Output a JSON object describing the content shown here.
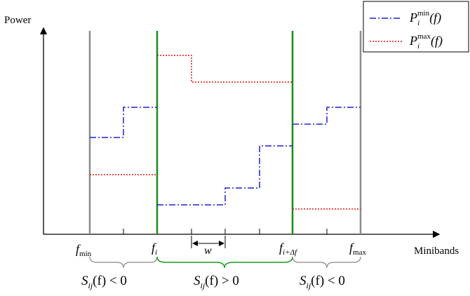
{
  "axes": {
    "y_label": "Power",
    "x_label": "Minibands"
  },
  "legend": {
    "items": [
      {
        "symbol": "P",
        "sub": "i",
        "sup": "min",
        "arg": "(f)",
        "color": "#1f1fd0",
        "dash": "dash-dot"
      },
      {
        "symbol": "P",
        "sub": "i",
        "sup": "max",
        "arg": "(f)",
        "color": "#e01010",
        "dash": "dotted"
      }
    ]
  },
  "freq_labels": {
    "fmin": {
      "base": "f",
      "sub": "min"
    },
    "fi": {
      "base": "f",
      "sub": "i"
    },
    "fidf": {
      "base": "f",
      "sub": "i+Δf"
    },
    "fmax": {
      "base": "f",
      "sub": "max"
    },
    "w": "w"
  },
  "regions": [
    {
      "base": "S",
      "sub": "ij",
      "rest": "(f) < 0",
      "brace_color": "#888888"
    },
    {
      "base": "S",
      "sub": "ij",
      "rest": "(f) > 0",
      "brace_color": "#1a9a1a"
    },
    {
      "base": "S",
      "sub": "ij",
      "rest": "(f) < 0",
      "brace_color": "#888888"
    }
  ],
  "colors": {
    "gray_line": "#8c8c8c",
    "green_line": "#1a8a1a",
    "pmin": "#1f1fd0",
    "pmax": "#e01010",
    "axis": "#000000"
  }
}
